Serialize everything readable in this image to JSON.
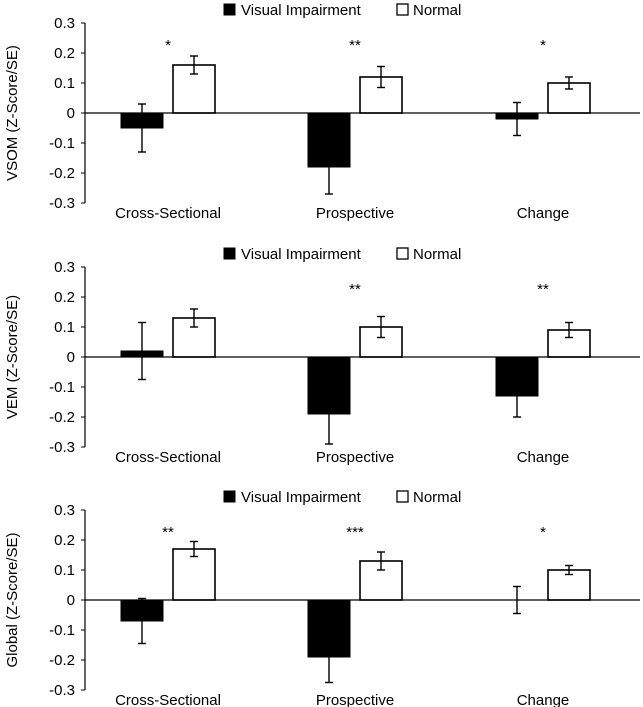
{
  "legend": {
    "impaired_label": "Visual Impairment",
    "normal_label": "Normal"
  },
  "colors": {
    "impaired": "#000000",
    "normal": "#ffffff",
    "axis": "#000000"
  },
  "chart_data": [
    {
      "type": "bar",
      "ylabel": "VSOM (Z-Score/SE)",
      "ylim": [
        -0.3,
        0.3
      ],
      "yticks": [
        "0.3",
        "0.2",
        "0.1",
        "0",
        "-0.1",
        "-0.2",
        "-0.3"
      ],
      "categories": [
        "Cross-Sectional",
        "Prospective",
        "Change"
      ],
      "series": [
        {
          "name": "Visual Impairment",
          "values": [
            -0.05,
            -0.18,
            -0.02
          ],
          "errors": [
            0.08,
            0.09,
            0.055
          ]
        },
        {
          "name": "Normal",
          "values": [
            0.16,
            0.12,
            0.1
          ],
          "errors": [
            0.03,
            0.035,
            0.02
          ]
        }
      ],
      "annotations": [
        "*",
        "**",
        "*"
      ],
      "legend_position": "top-center"
    },
    {
      "type": "bar",
      "ylabel": "VEM (Z-Score/SE)",
      "ylim": [
        -0.3,
        0.3
      ],
      "yticks": [
        "0.3",
        "0.2",
        "0.1",
        "0",
        "-0.1",
        "-0.2",
        "-0.3"
      ],
      "categories": [
        "Cross-Sectional",
        "Prospective",
        "Change"
      ],
      "series": [
        {
          "name": "Visual Impairment",
          "values": [
            0.02,
            -0.19,
            -0.13
          ],
          "errors": [
            0.095,
            0.1,
            0.07
          ]
        },
        {
          "name": "Normal",
          "values": [
            0.13,
            0.1,
            0.09
          ],
          "errors": [
            0.03,
            0.035,
            0.025
          ]
        }
      ],
      "annotations": [
        "",
        "**",
        "**"
      ],
      "legend_position": "top-center"
    },
    {
      "type": "bar",
      "ylabel": "Global (Z-Score/SE)",
      "ylim": [
        -0.3,
        0.3
      ],
      "yticks": [
        "0.3",
        "0.2",
        "0.1",
        "0",
        "-0.1",
        "-0.2",
        "-0.3"
      ],
      "categories": [
        "Cross-Sectional",
        "Prospective",
        "Change"
      ],
      "series": [
        {
          "name": "Visual Impairment",
          "values": [
            -0.07,
            -0.19,
            0.0
          ],
          "errors": [
            0.075,
            0.085,
            0.045
          ]
        },
        {
          "name": "Normal",
          "values": [
            0.17,
            0.13,
            0.1
          ],
          "errors": [
            0.025,
            0.03,
            0.015
          ]
        }
      ],
      "annotations": [
        "**",
        "***",
        "*"
      ],
      "legend_position": "top-center"
    }
  ]
}
